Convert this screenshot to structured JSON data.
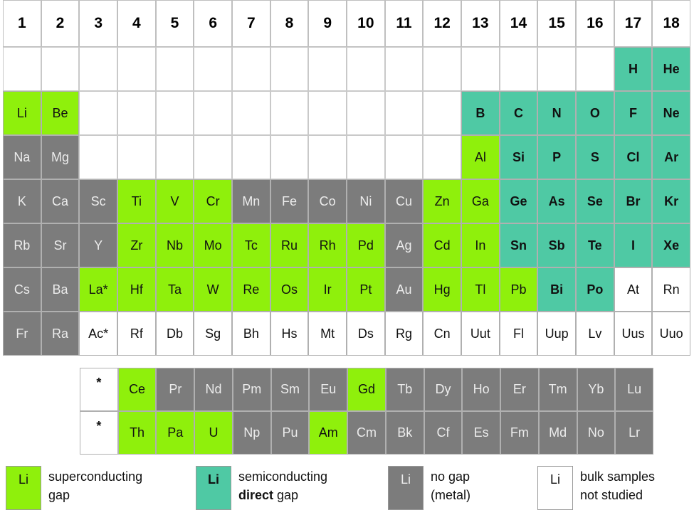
{
  "colors": {
    "superconducting": "#8ff00c",
    "semiconducting": "#4fc9a4",
    "metal": "#7c7c7c",
    "not_studied": "#ffffff"
  },
  "groups": [
    "1",
    "2",
    "3",
    "4",
    "5",
    "6",
    "7",
    "8",
    "9",
    "10",
    "11",
    "12",
    "13",
    "14",
    "15",
    "16",
    "17",
    "18"
  ],
  "main_table": [
    {
      "el": "H",
      "g": 17,
      "p": 1,
      "type": "semi"
    },
    {
      "el": "He",
      "g": 18,
      "p": 1,
      "type": "semi"
    },
    {
      "el": "Li",
      "g": 1,
      "p": 2,
      "type": "sc"
    },
    {
      "el": "Be",
      "g": 2,
      "p": 2,
      "type": "sc"
    },
    {
      "el": "B",
      "g": 13,
      "p": 2,
      "type": "semi"
    },
    {
      "el": "C",
      "g": 14,
      "p": 2,
      "type": "semi"
    },
    {
      "el": "N",
      "g": 15,
      "p": 2,
      "type": "semi"
    },
    {
      "el": "O",
      "g": 16,
      "p": 2,
      "type": "semi"
    },
    {
      "el": "F",
      "g": 17,
      "p": 2,
      "type": "semi"
    },
    {
      "el": "Ne",
      "g": 18,
      "p": 2,
      "type": "semi"
    },
    {
      "el": "Na",
      "g": 1,
      "p": 3,
      "type": "metal"
    },
    {
      "el": "Mg",
      "g": 2,
      "p": 3,
      "type": "metal"
    },
    {
      "el": "Al",
      "g": 13,
      "p": 3,
      "type": "sc"
    },
    {
      "el": "Si",
      "g": 14,
      "p": 3,
      "type": "semi"
    },
    {
      "el": "P",
      "g": 15,
      "p": 3,
      "type": "semi"
    },
    {
      "el": "S",
      "g": 16,
      "p": 3,
      "type": "semi"
    },
    {
      "el": "Cl",
      "g": 17,
      "p": 3,
      "type": "semi"
    },
    {
      "el": "Ar",
      "g": 18,
      "p": 3,
      "type": "semi"
    },
    {
      "el": "K",
      "g": 1,
      "p": 4,
      "type": "metal"
    },
    {
      "el": "Ca",
      "g": 2,
      "p": 4,
      "type": "metal"
    },
    {
      "el": "Sc",
      "g": 3,
      "p": 4,
      "type": "metal"
    },
    {
      "el": "Ti",
      "g": 4,
      "p": 4,
      "type": "sc"
    },
    {
      "el": "V",
      "g": 5,
      "p": 4,
      "type": "sc"
    },
    {
      "el": "Cr",
      "g": 6,
      "p": 4,
      "type": "sc"
    },
    {
      "el": "Mn",
      "g": 7,
      "p": 4,
      "type": "metal"
    },
    {
      "el": "Fe",
      "g": 8,
      "p": 4,
      "type": "metal"
    },
    {
      "el": "Co",
      "g": 9,
      "p": 4,
      "type": "metal"
    },
    {
      "el": "Ni",
      "g": 10,
      "p": 4,
      "type": "metal"
    },
    {
      "el": "Cu",
      "g": 11,
      "p": 4,
      "type": "metal"
    },
    {
      "el": "Zn",
      "g": 12,
      "p": 4,
      "type": "sc"
    },
    {
      "el": "Ga",
      "g": 13,
      "p": 4,
      "type": "sc"
    },
    {
      "el": "Ge",
      "g": 14,
      "p": 4,
      "type": "semi"
    },
    {
      "el": "As",
      "g": 15,
      "p": 4,
      "type": "semi"
    },
    {
      "el": "Se",
      "g": 16,
      "p": 4,
      "type": "semi"
    },
    {
      "el": "Br",
      "g": 17,
      "p": 4,
      "type": "semi"
    },
    {
      "el": "Kr",
      "g": 18,
      "p": 4,
      "type": "semi"
    },
    {
      "el": "Rb",
      "g": 1,
      "p": 5,
      "type": "metal"
    },
    {
      "el": "Sr",
      "g": 2,
      "p": 5,
      "type": "metal"
    },
    {
      "el": "Y",
      "g": 3,
      "p": 5,
      "type": "metal"
    },
    {
      "el": "Zr",
      "g": 4,
      "p": 5,
      "type": "sc"
    },
    {
      "el": "Nb",
      "g": 5,
      "p": 5,
      "type": "sc"
    },
    {
      "el": "Mo",
      "g": 6,
      "p": 5,
      "type": "sc"
    },
    {
      "el": "Tc",
      "g": 7,
      "p": 5,
      "type": "sc"
    },
    {
      "el": "Ru",
      "g": 8,
      "p": 5,
      "type": "sc"
    },
    {
      "el": "Rh",
      "g": 9,
      "p": 5,
      "type": "sc"
    },
    {
      "el": "Pd",
      "g": 10,
      "p": 5,
      "type": "sc"
    },
    {
      "el": "Ag",
      "g": 11,
      "p": 5,
      "type": "metal"
    },
    {
      "el": "Cd",
      "g": 12,
      "p": 5,
      "type": "sc"
    },
    {
      "el": "In",
      "g": 13,
      "p": 5,
      "type": "sc"
    },
    {
      "el": "Sn",
      "g": 14,
      "p": 5,
      "type": "semi"
    },
    {
      "el": "Sb",
      "g": 15,
      "p": 5,
      "type": "semi"
    },
    {
      "el": "Te",
      "g": 16,
      "p": 5,
      "type": "semi"
    },
    {
      "el": "I",
      "g": 17,
      "p": 5,
      "type": "semi"
    },
    {
      "el": "Xe",
      "g": 18,
      "p": 5,
      "type": "semi"
    },
    {
      "el": "Cs",
      "g": 1,
      "p": 6,
      "type": "metal"
    },
    {
      "el": "Ba",
      "g": 2,
      "p": 6,
      "type": "metal"
    },
    {
      "el": "La*",
      "g": 3,
      "p": 6,
      "type": "sc"
    },
    {
      "el": "Hf",
      "g": 4,
      "p": 6,
      "type": "sc"
    },
    {
      "el": "Ta",
      "g": 5,
      "p": 6,
      "type": "sc"
    },
    {
      "el": "W",
      "g": 6,
      "p": 6,
      "type": "sc"
    },
    {
      "el": "Re",
      "g": 7,
      "p": 6,
      "type": "sc"
    },
    {
      "el": "Os",
      "g": 8,
      "p": 6,
      "type": "sc"
    },
    {
      "el": "Ir",
      "g": 9,
      "p": 6,
      "type": "sc"
    },
    {
      "el": "Pt",
      "g": 10,
      "p": 6,
      "type": "sc"
    },
    {
      "el": "Au",
      "g": 11,
      "p": 6,
      "type": "metal"
    },
    {
      "el": "Hg",
      "g": 12,
      "p": 6,
      "type": "sc"
    },
    {
      "el": "Tl",
      "g": 13,
      "p": 6,
      "type": "sc"
    },
    {
      "el": "Pb",
      "g": 14,
      "p": 6,
      "type": "sc"
    },
    {
      "el": "Bi",
      "g": 15,
      "p": 6,
      "type": "semi"
    },
    {
      "el": "Po",
      "g": 16,
      "p": 6,
      "type": "semi"
    },
    {
      "el": "At",
      "g": 17,
      "p": 6,
      "type": "none"
    },
    {
      "el": "Rn",
      "g": 18,
      "p": 6,
      "type": "none"
    },
    {
      "el": "Fr",
      "g": 1,
      "p": 7,
      "type": "metal"
    },
    {
      "el": "Ra",
      "g": 2,
      "p": 7,
      "type": "metal"
    },
    {
      "el": "Ac*",
      "g": 3,
      "p": 7,
      "type": "none"
    },
    {
      "el": "Rf",
      "g": 4,
      "p": 7,
      "type": "none"
    },
    {
      "el": "Db",
      "g": 5,
      "p": 7,
      "type": "none"
    },
    {
      "el": "Sg",
      "g": 6,
      "p": 7,
      "type": "none"
    },
    {
      "el": "Bh",
      "g": 7,
      "p": 7,
      "type": "none"
    },
    {
      "el": "Hs",
      "g": 8,
      "p": 7,
      "type": "none"
    },
    {
      "el": "Mt",
      "g": 9,
      "p": 7,
      "type": "none"
    },
    {
      "el": "Ds",
      "g": 10,
      "p": 7,
      "type": "none"
    },
    {
      "el": "Rg",
      "g": 11,
      "p": 7,
      "type": "none"
    },
    {
      "el": "Cn",
      "g": 12,
      "p": 7,
      "type": "none"
    },
    {
      "el": "Uut",
      "g": 13,
      "p": 7,
      "type": "none"
    },
    {
      "el": "Fl",
      "g": 14,
      "p": 7,
      "type": "none"
    },
    {
      "el": "Uup",
      "g": 15,
      "p": 7,
      "type": "none"
    },
    {
      "el": "Lv",
      "g": 16,
      "p": 7,
      "type": "none"
    },
    {
      "el": "Uus",
      "g": 17,
      "p": 7,
      "type": "none"
    },
    {
      "el": "Uuo",
      "g": 18,
      "p": 7,
      "type": "none"
    }
  ],
  "lanthanides": [
    {
      "el": "*",
      "type": "none"
    },
    {
      "el": "Ce",
      "type": "sc"
    },
    {
      "el": "Pr",
      "type": "metal"
    },
    {
      "el": "Nd",
      "type": "metal"
    },
    {
      "el": "Pm",
      "type": "metal"
    },
    {
      "el": "Sm",
      "type": "metal"
    },
    {
      "el": "Eu",
      "type": "metal"
    },
    {
      "el": "Gd",
      "type": "sc"
    },
    {
      "el": "Tb",
      "type": "metal"
    },
    {
      "el": "Dy",
      "type": "metal"
    },
    {
      "el": "Ho",
      "type": "metal"
    },
    {
      "el": "Er",
      "type": "metal"
    },
    {
      "el": "Tm",
      "type": "metal"
    },
    {
      "el": "Yb",
      "type": "metal"
    },
    {
      "el": "Lu",
      "type": "metal"
    }
  ],
  "actinides": [
    {
      "el": "*",
      "type": "none"
    },
    {
      "el": "Th",
      "type": "sc"
    },
    {
      "el": "Pa",
      "type": "sc"
    },
    {
      "el": "U",
      "type": "sc"
    },
    {
      "el": "Np",
      "type": "metal"
    },
    {
      "el": "Pu",
      "type": "metal"
    },
    {
      "el": "Am",
      "type": "sc"
    },
    {
      "el": "Cm",
      "type": "metal"
    },
    {
      "el": "Bk",
      "type": "metal"
    },
    {
      "el": "Cf",
      "type": "metal"
    },
    {
      "el": "Es",
      "type": "metal"
    },
    {
      "el": "Fm",
      "type": "metal"
    },
    {
      "el": "Md",
      "type": "metal"
    },
    {
      "el": "No",
      "type": "metal"
    },
    {
      "el": "Lr",
      "type": "metal"
    }
  ],
  "legend": [
    {
      "sample": "Li",
      "type": "sc",
      "line1": "superconducting",
      "line2": "gap",
      "bold_word": ""
    },
    {
      "sample": "Li",
      "type": "semi",
      "line1": "semiconducting",
      "line2": " gap",
      "bold_word": "direct"
    },
    {
      "sample": "Li",
      "type": "metal",
      "line1": "no gap",
      "line2": "(metal)",
      "bold_word": ""
    },
    {
      "sample": "Li",
      "type": "none",
      "line1": "bulk samples",
      "line2": "not studied",
      "bold_word": ""
    }
  ]
}
